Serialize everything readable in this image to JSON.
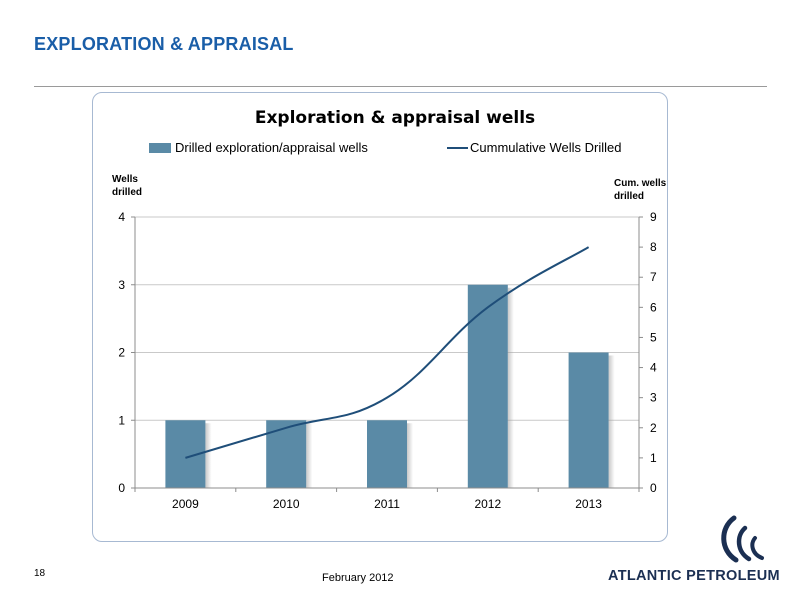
{
  "slide": {
    "title": "EXPLORATION & APPRAISAL",
    "page_number": "18",
    "date": "February 2012",
    "logo_text": "ATLANTIC PETROLEUM"
  },
  "colors": {
    "title": "#1a5ea8",
    "bar": "#5a8aa6",
    "line": "#1f4e79",
    "grid": "#c9c9c9",
    "logo": "#1b2f52"
  },
  "chart_data": {
    "type": "bar",
    "title": "Exploration & appraisal wells",
    "categories": [
      "2009",
      "2010",
      "2011",
      "2012",
      "2013"
    ],
    "series": [
      {
        "name": "Drilled exploration/appraisal wells",
        "type": "bar",
        "axis": "left",
        "values": [
          1,
          1,
          1,
          3,
          2
        ]
      },
      {
        "name": "Cummulative Wells Drilled",
        "type": "line",
        "axis": "right",
        "values": [
          1,
          2,
          3,
          6,
          8
        ]
      }
    ],
    "ylabel_left": "Wells drilled",
    "ylabel_right": "Cum. wells drilled",
    "ylim_left": [
      0,
      4
    ],
    "yticks_left": [
      "0",
      "1",
      "2",
      "3",
      "4"
    ],
    "ylim_right": [
      0,
      9
    ],
    "yticks_right": [
      "0",
      "1",
      "2",
      "3",
      "4",
      "5",
      "6",
      "7",
      "8",
      "9"
    ],
    "grid": true,
    "legend_position": "top"
  }
}
